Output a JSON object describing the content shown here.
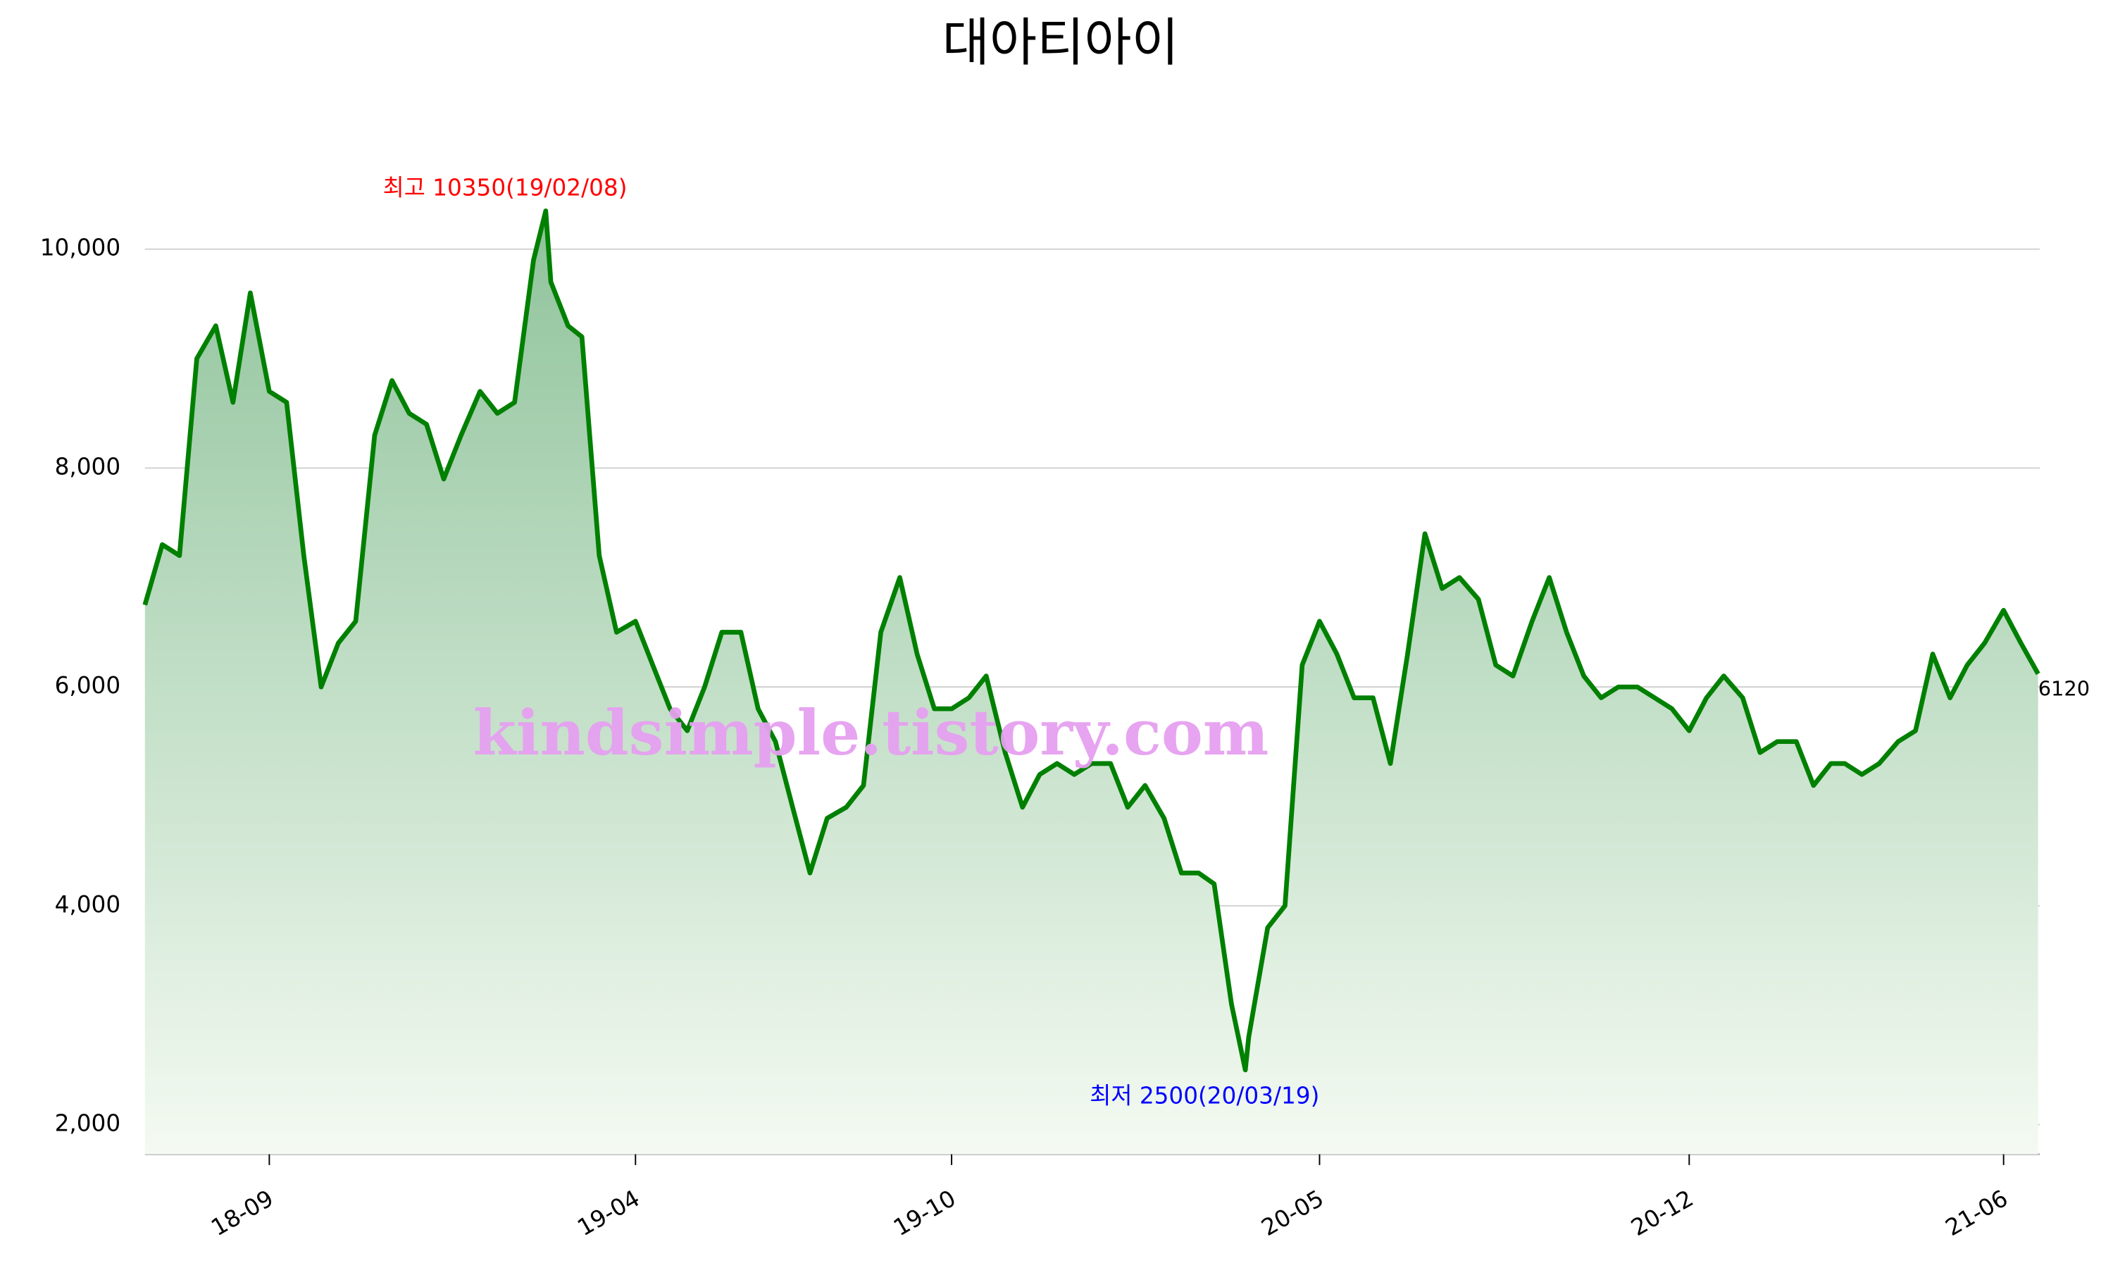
{
  "chart_data": {
    "type": "line",
    "title": "대아티아이",
    "watermark": "kindsimple.tistory.com",
    "annotations": [
      {
        "text": "최고 10350(19/02/08)",
        "color": "#ff0000",
        "at": "max"
      },
      {
        "text": "최저 2500(20/03/19)",
        "color": "#0000ff",
        "at": "min"
      }
    ],
    "x": [
      "2018-06-21",
      "2018-07-01",
      "2018-07-11",
      "2018-07-21",
      "2018-08-01",
      "2018-08-11",
      "2018-08-21",
      "2018-09-01",
      "2018-09-11",
      "2018-09-21",
      "2018-10-01",
      "2018-10-11",
      "2018-10-21",
      "2018-11-01",
      "2018-11-11",
      "2018-11-21",
      "2018-12-01",
      "2018-12-11",
      "2018-12-21",
      "2019-01-01",
      "2019-01-11",
      "2019-01-21",
      "2019-02-01",
      "2019-02-08",
      "2019-02-11",
      "2019-02-21",
      "2019-03-01",
      "2019-03-11",
      "2019-03-21",
      "2019-04-01",
      "2019-04-11",
      "2019-04-21",
      "2019-05-01",
      "2019-05-11",
      "2019-05-21",
      "2019-06-01",
      "2019-06-11",
      "2019-06-21",
      "2019-07-01",
      "2019-07-11",
      "2019-07-21",
      "2019-08-01",
      "2019-08-11",
      "2019-08-21",
      "2019-09-01",
      "2019-09-11",
      "2019-09-21",
      "2019-10-01",
      "2019-10-11",
      "2019-10-21",
      "2019-11-01",
      "2019-11-11",
      "2019-11-21",
      "2019-12-01",
      "2019-12-11",
      "2019-12-21",
      "2020-01-01",
      "2020-01-11",
      "2020-01-21",
      "2020-02-01",
      "2020-02-11",
      "2020-02-21",
      "2020-03-01",
      "2020-03-11",
      "2020-03-19",
      "2020-03-21",
      "2020-04-01",
      "2020-04-11",
      "2020-04-21",
      "2020-05-01",
      "2020-05-11",
      "2020-05-21",
      "2020-06-01",
      "2020-06-11",
      "2020-06-21",
      "2020-07-01",
      "2020-07-11",
      "2020-07-21",
      "2020-08-01",
      "2020-08-11",
      "2020-08-21",
      "2020-09-01",
      "2020-09-11",
      "2020-09-21",
      "2020-10-01",
      "2020-10-11",
      "2020-10-21",
      "2020-11-01",
      "2020-11-11",
      "2020-11-21",
      "2020-12-01",
      "2020-12-11",
      "2020-12-21",
      "2021-01-01",
      "2021-01-11",
      "2021-01-21",
      "2021-02-01",
      "2021-02-11",
      "2021-02-21",
      "2021-03-01",
      "2021-03-11",
      "2021-03-21",
      "2021-04-01",
      "2021-04-11",
      "2021-04-21",
      "2021-05-01",
      "2021-05-11",
      "2021-05-21",
      "2021-06-01",
      "2021-06-11",
      "2021-06-21"
    ],
    "series": [
      {
        "name": "대아티아이",
        "color": "#008000",
        "fill_top": "#8fc39b",
        "fill_bottom": "#f4faf2",
        "values": [
          6750,
          7300,
          7200,
          9000,
          9300,
          8600,
          9600,
          8700,
          8600,
          7200,
          6000,
          6400,
          6600,
          8300,
          8800,
          8500,
          8400,
          7900,
          8300,
          8700,
          8500,
          8600,
          9900,
          10350,
          9700,
          9300,
          9200,
          7200,
          6500,
          6600,
          6200,
          5800,
          5600,
          6000,
          6500,
          6500,
          5800,
          5500,
          4900,
          4300,
          4800,
          4900,
          5100,
          6500,
          7000,
          6300,
          5800,
          5800,
          5900,
          6100,
          5400,
          4900,
          5200,
          5300,
          5200,
          5300,
          5300,
          4900,
          5100,
          4800,
          4300,
          4300,
          4200,
          3100,
          2500,
          2800,
          3800,
          4000,
          6200,
          6600,
          6300,
          5900,
          5900,
          5300,
          6300,
          7400,
          6900,
          7000,
          6800,
          6200,
          6100,
          6600,
          7000,
          6500,
          6100,
          5900,
          6000,
          6000,
          5900,
          5800,
          5600,
          5900,
          6100,
          5900,
          5400,
          5500,
          5500,
          5100,
          5300,
          5300,
          5200,
          5300,
          5500,
          5600,
          6300,
          5900,
          6200,
          6400,
          6700,
          6400,
          6120
        ]
      }
    ],
    "xlim": [
      "2018-06-21",
      "2021-06-22"
    ],
    "xticks": [
      {
        "value": "2018-09-01",
        "label": "18-09"
      },
      {
        "value": "2019-04-01",
        "label": "19-04"
      },
      {
        "value": "2019-10-01",
        "label": "19-10"
      },
      {
        "value": "2020-05-01",
        "label": "20-05"
      },
      {
        "value": "2020-12-01",
        "label": "20-12"
      },
      {
        "value": "2021-06-01",
        "label": "21-06"
      }
    ],
    "ylim": [
      1730,
      10420
    ],
    "yticks": [
      {
        "value": 2000,
        "label": "2,000"
      },
      {
        "value": 4000,
        "label": "4,000"
      },
      {
        "value": 6000,
        "label": "6,000"
      },
      {
        "value": 8000,
        "label": "8,000"
      },
      {
        "value": 10000,
        "label": "10,000"
      }
    ],
    "grid": true
  }
}
